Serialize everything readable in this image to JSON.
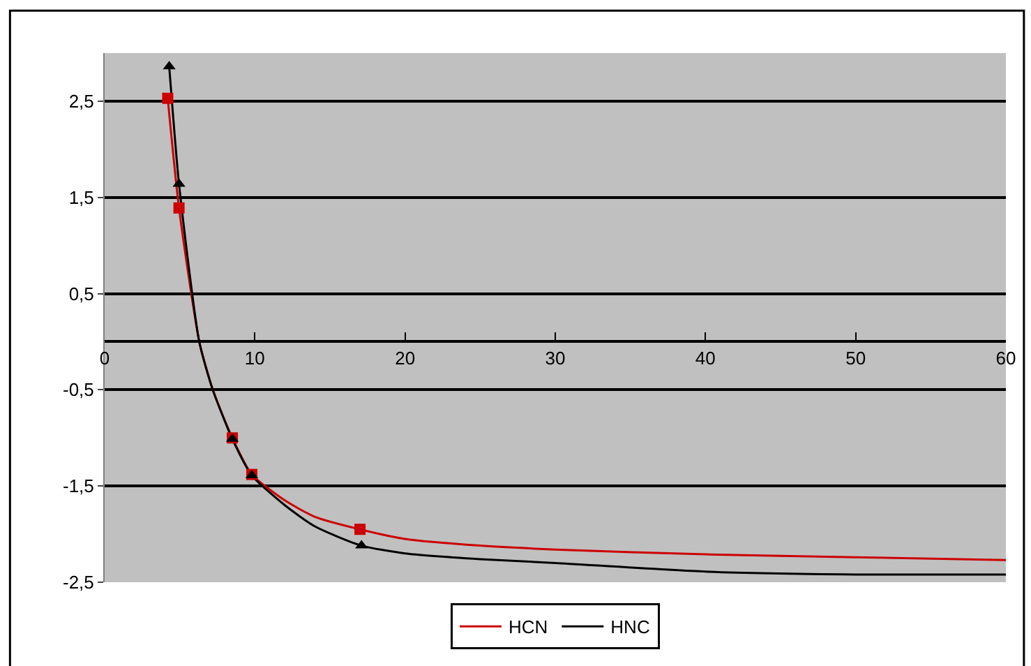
{
  "chart_data": {
    "type": "line",
    "xlim": [
      0,
      60
    ],
    "xticks": [
      0,
      10,
      20,
      30,
      40,
      50,
      60
    ],
    "ylim": [
      -2.5,
      3.0
    ],
    "yticks": [
      {
        "value": -2.5,
        "label": "-2,5"
      },
      {
        "value": -1.5,
        "label": "-1,5"
      },
      {
        "value": -0.5,
        "label": "-0,5"
      },
      {
        "value": 0.5,
        "label": "0,5"
      },
      {
        "value": 1.5,
        "label": "1,5"
      },
      {
        "value": 2.5,
        "label": "2,5"
      }
    ],
    "grid": "y",
    "legend": "bottom",
    "marker": "none",
    "series": [
      {
        "name": "HCN",
        "color": "#cc0000",
        "x": [
          4.2,
          4.95,
          6.3,
          7.2,
          8.5,
          9.8,
          12,
          14,
          17,
          20,
          25,
          30,
          40,
          50,
          60
        ],
        "values": [
          2.53,
          1.39,
          0,
          -0.5,
          -1.0,
          -1.38,
          -1.65,
          -1.82,
          -1.95,
          -2.05,
          -2.12,
          -2.16,
          -2.21,
          -2.24,
          -2.27
        ]
      },
      {
        "name": "HNC",
        "color": "#000000",
        "x": [
          4.3,
          4.95,
          6.3,
          7.2,
          8.5,
          9.8,
          12,
          14,
          17.1,
          20,
          25,
          30,
          40,
          50,
          60
        ],
        "values": [
          2.86,
          1.64,
          0,
          -0.5,
          -1.01,
          -1.39,
          -1.7,
          -1.92,
          -2.12,
          -2.2,
          -2.26,
          -2.3,
          -2.39,
          -2.42,
          -2.42
        ]
      },
      {
        "type": "scatter",
        "marker": "square",
        "color": "#cc0000",
        "x": [
          4.2,
          4.95,
          8.5,
          9.8,
          17.0
        ],
        "values": [
          2.53,
          1.39,
          -1.0,
          -1.38,
          -1.95
        ]
      },
      {
        "type": "scatter",
        "marker": "triangle",
        "color": "#000000",
        "x": [
          4.3,
          4.95,
          8.5,
          9.8,
          17.1
        ],
        "values": [
          2.86,
          1.64,
          -1.01,
          -1.39,
          -2.12
        ]
      }
    ]
  }
}
